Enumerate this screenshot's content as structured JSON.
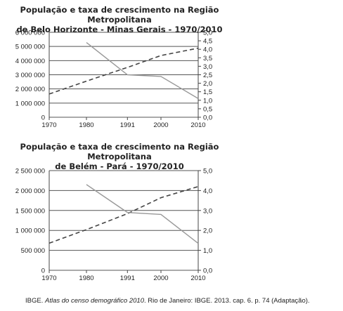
{
  "chart_data": [
    {
      "type": "line",
      "title_lines": [
        "População e taxa de crescimento na Região Metropolitana",
        "de Belo Horizonte - Minas Gerais - 1970/2010"
      ],
      "categories": [
        "1970",
        "1980",
        "1991",
        "2000",
        "2010"
      ],
      "x": [
        1970,
        1980,
        1991,
        2000,
        2010
      ],
      "series": [
        {
          "axis": "left",
          "style": "dashed",
          "color": "#444444",
          "values": [
            1640000,
            2550000,
            3520000,
            4360000,
            4880000
          ]
        },
        {
          "axis": "right",
          "style": "solid",
          "color": "#999999",
          "values": [
            null,
            4.4,
            2.5,
            2.4,
            1.1
          ]
        }
      ],
      "ylim_left": [
        0,
        6000000
      ],
      "yticks_left": [
        "0",
        "1 000 000",
        "2 000 000",
        "3 000 000",
        "4 000 000",
        "5 000 000",
        "6 000 000"
      ],
      "ylim_right": [
        0,
        5
      ],
      "yticks_right": [
        "0,0",
        "0,5",
        "1,0",
        "1,5",
        "2,0",
        "2,5",
        "3,0",
        "3,5",
        "4,0",
        "4,5",
        "5,0"
      ],
      "grid": "horizontal"
    },
    {
      "type": "line",
      "title_lines": [
        "População e taxa de crescimento na Região Metropolitana",
        "de Belém - Pará - 1970/2010"
      ],
      "categories": [
        "1970",
        "1980",
        "1991",
        "2000",
        "2010"
      ],
      "x": [
        1970,
        1980,
        1991,
        2000,
        2010
      ],
      "series": [
        {
          "axis": "left",
          "style": "dashed",
          "color": "#444444",
          "values": [
            680000,
            1020000,
            1420000,
            1820000,
            2100000
          ]
        },
        {
          "axis": "right",
          "style": "solid",
          "color": "#999999",
          "values": [
            null,
            4.3,
            2.9,
            2.8,
            1.35
          ]
        }
      ],
      "ylim_left": [
        0,
        2500000
      ],
      "yticks_left": [
        "0",
        "500 000",
        "1 000 000",
        "1 500 000",
        "2 000 000",
        "2 500 000"
      ],
      "ylim_right": [
        0,
        5
      ],
      "yticks_right": [
        "0,0",
        "1,0",
        "2,0",
        "3,0",
        "4,0",
        "5,0"
      ],
      "grid": "horizontal"
    }
  ],
  "source": {
    "prefix": "IBGE. ",
    "italic": "Atlas do censo demográfico 2010",
    "suffix": ". Rio de Janeiro: IBGE. 2013. cap. 6. p. 74 (Adaptação)."
  }
}
